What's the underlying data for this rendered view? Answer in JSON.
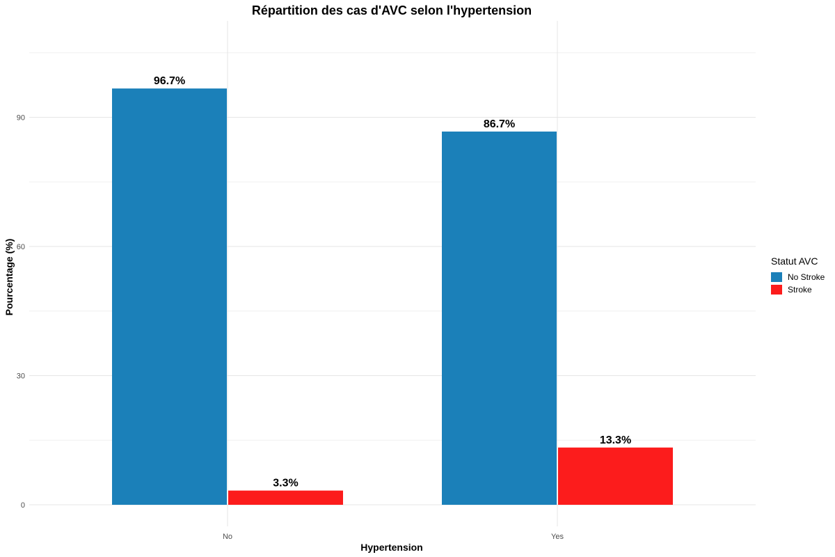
{
  "chart_data": {
    "type": "bar",
    "title": "Répartition des cas d'AVC selon l'hypertension",
    "xlabel": "Hypertension",
    "ylabel": "Pourcentage (%)",
    "categories": [
      "No",
      "Yes"
    ],
    "ylim": [
      0,
      105
    ],
    "yticks": [
      0,
      30,
      60,
      90
    ],
    "grid": true,
    "legend": {
      "title": "Statut AVC",
      "position": "right"
    },
    "series": [
      {
        "name": "No Stroke",
        "color": "#1b80b9",
        "values": [
          96.7,
          86.7
        ],
        "labels": [
          "96.7%",
          "86.7%"
        ]
      },
      {
        "name": "Stroke",
        "color": "#fc1c1c",
        "values": [
          3.3,
          13.3
        ],
        "labels": [
          "3.3%",
          "13.3%"
        ]
      }
    ]
  }
}
